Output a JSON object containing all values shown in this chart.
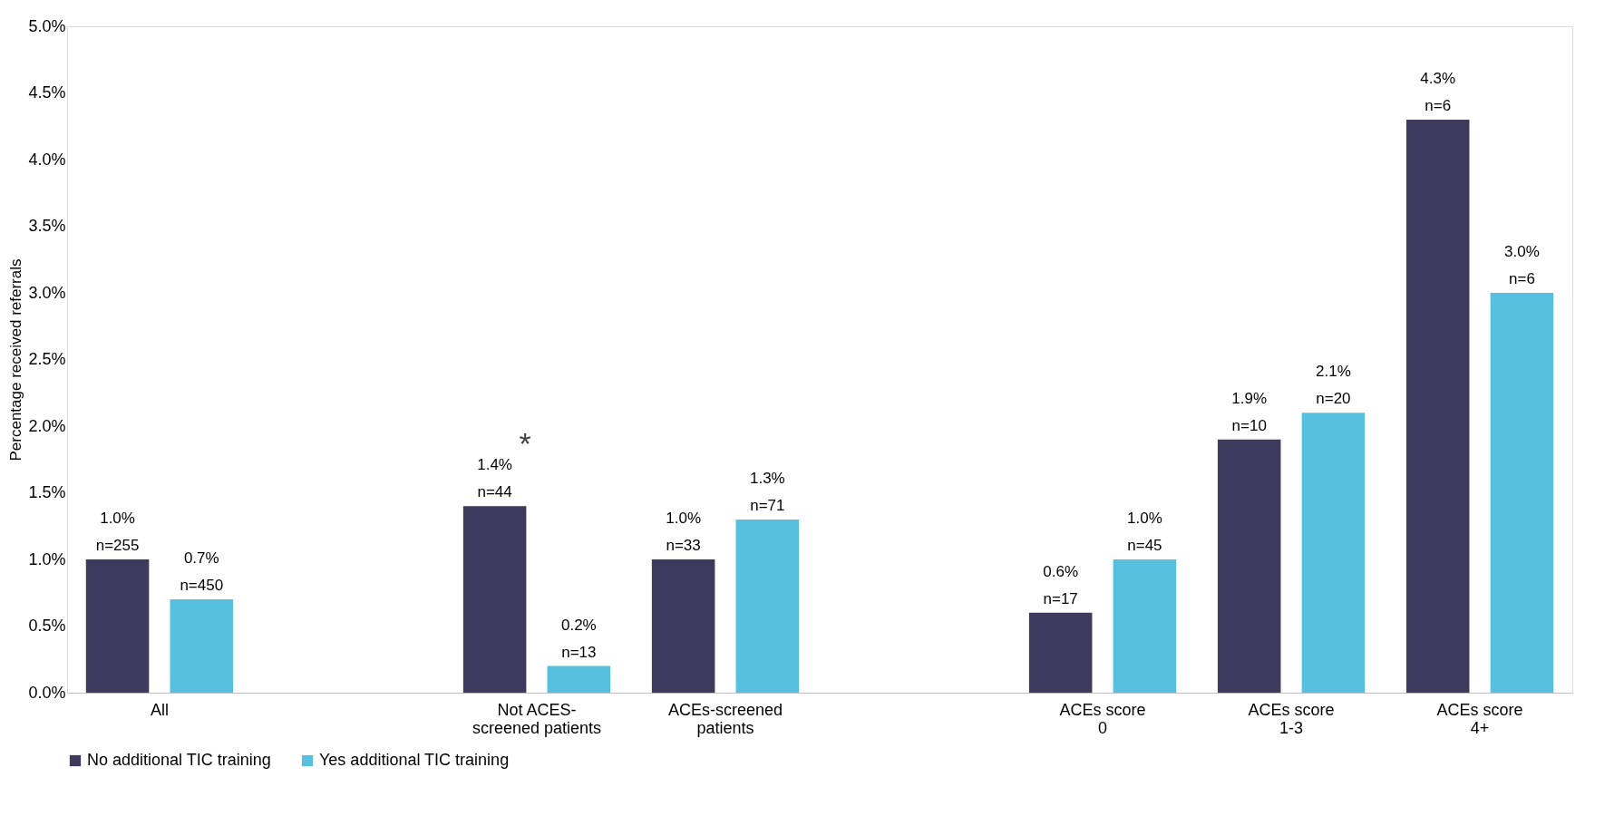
{
  "chart_data": {
    "type": "bar",
    "ylabel": "Percentage received referrals",
    "categories": [
      "All",
      null,
      "Not ACES-screened patients",
      "ACEs-screened patients",
      null,
      "ACEs score 0",
      "ACEs score 1-3",
      "ACEs score 4+"
    ],
    "series": [
      {
        "name": "No additional TIC training",
        "color": "#3e3a5e",
        "values": [
          1.0,
          null,
          1.4,
          1.0,
          null,
          0.6,
          1.9,
          4.3
        ],
        "value_labels": [
          "1.0%\nn=255",
          null,
          "1.4%\nn=44",
          "1.0%\nn=33",
          null,
          "0.6%\nn=17",
          "1.9%\nn=10",
          "4.3%\nn=6"
        ]
      },
      {
        "name": "Yes additional TIC training",
        "color": "#56c0de",
        "values": [
          0.7,
          null,
          0.2,
          1.3,
          null,
          1.0,
          2.1,
          3.0
        ],
        "value_labels": [
          "0.7%\nn=450",
          null,
          "0.2%\nn=13",
          "1.3%\nn=71",
          null,
          "1.0%\nn=45",
          "2.1%\nn=20",
          "3.0%\nn=6"
        ]
      }
    ],
    "ylim": [
      0,
      5
    ],
    "yticks": [
      {
        "value": 0,
        "label": "0.0%"
      },
      {
        "value": 0.5,
        "label": "0.5%"
      },
      {
        "value": 1,
        "label": "1.0%"
      },
      {
        "value": 1.5,
        "label": "1.5%"
      },
      {
        "value": 2,
        "label": "2.0%"
      },
      {
        "value": 2.5,
        "label": "2.5%"
      },
      {
        "value": 3,
        "label": "3.0%"
      },
      {
        "value": 3.5,
        "label": "3.5%"
      },
      {
        "value": 4,
        "label": "4.0%"
      },
      {
        "value": 4.5,
        "label": "4.5%"
      },
      {
        "value": 5,
        "label": "5.0%"
      }
    ],
    "annotations": [
      "*"
    ],
    "grid": false,
    "legend": "bottom"
  }
}
